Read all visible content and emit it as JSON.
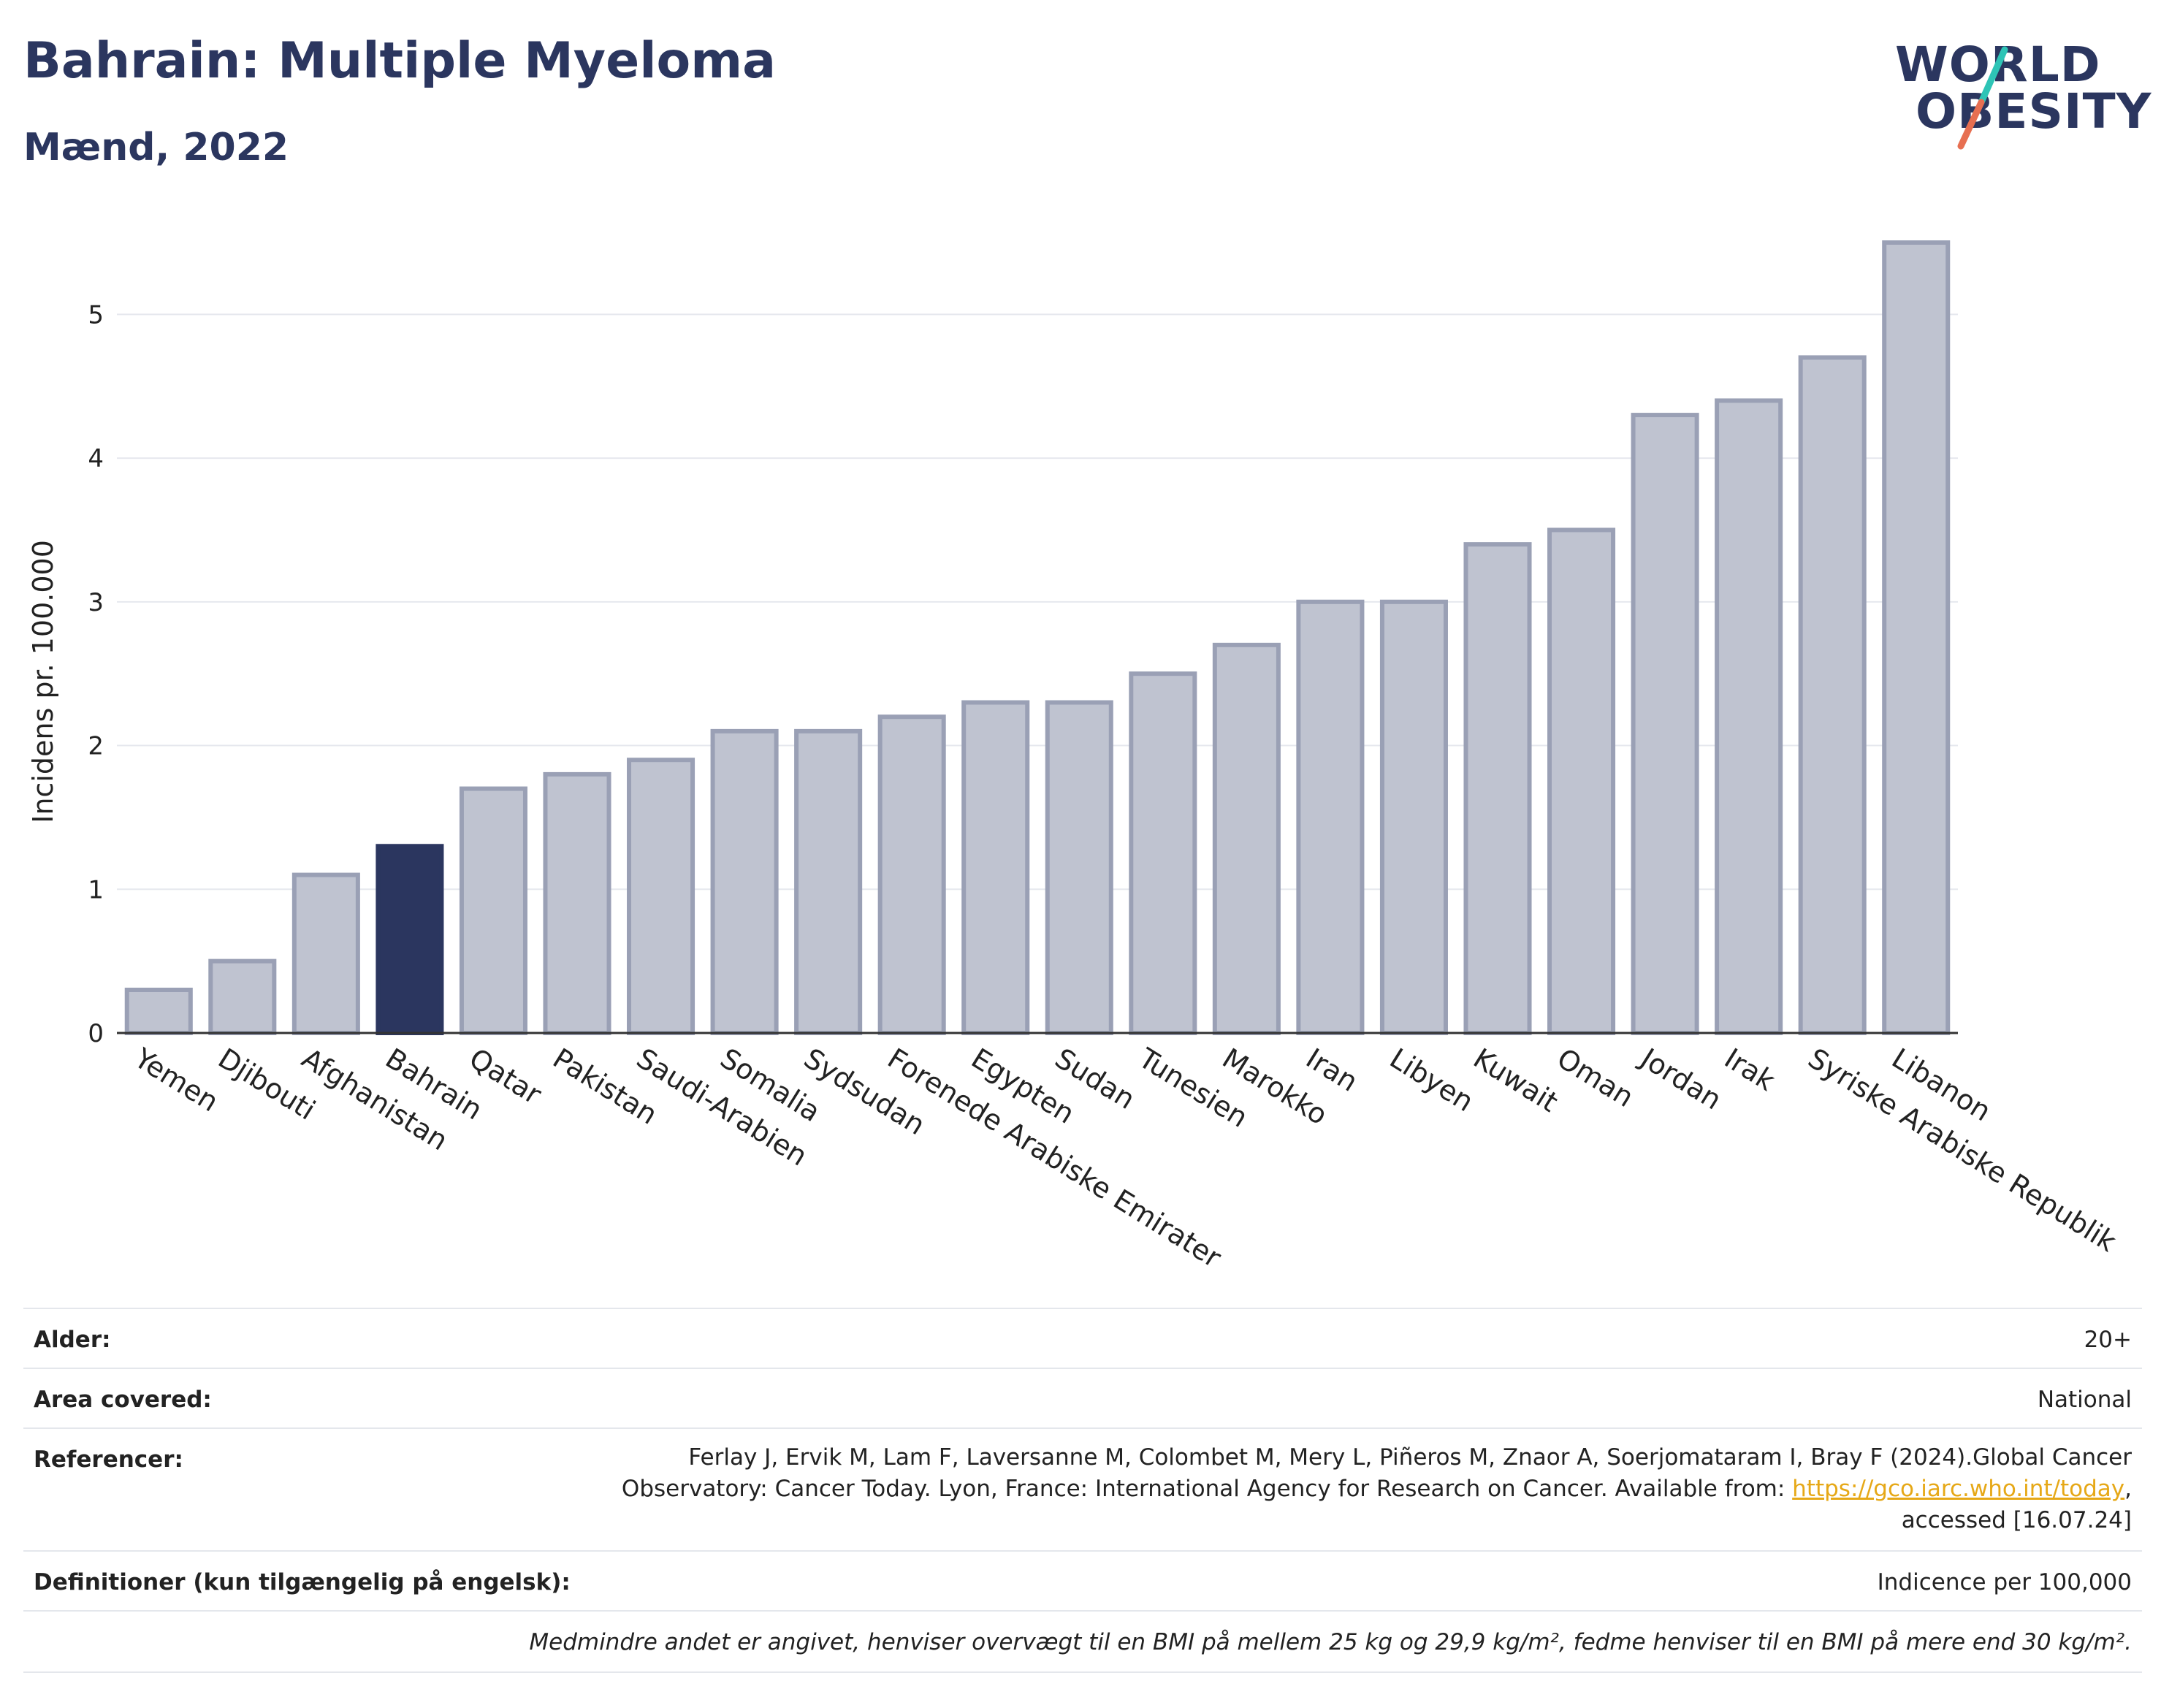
{
  "header": {
    "title": "Bahrain: Multiple Myeloma",
    "subtitle": "Mænd, 2022",
    "logo_line1": "WORLD",
    "logo_line2": "OBESITY"
  },
  "colors": {
    "accent": "#2b365f",
    "bar_default": "#bfc3d0",
    "bar_outline": "#9aa0b5",
    "logo_stripe_top": "#2ec4b6",
    "logo_stripe_bottom": "#e76f51",
    "link": "#e6a817"
  },
  "chart_data": {
    "type": "bar",
    "title": "Bahrain: Multiple Myeloma",
    "subtitle": "Mænd, 2022",
    "xlabel": "",
    "ylabel": "Incidens pr. 100.000",
    "ylim": [
      0,
      5.5
    ],
    "yticks": [
      0,
      1,
      2,
      3,
      4,
      5
    ],
    "grid": true,
    "highlight": "Bahrain",
    "categories": [
      "Yemen",
      "Djibouti",
      "Afghanistan",
      "Bahrain",
      "Qatar",
      "Pakistan",
      "Saudi-Arabien",
      "Somalia",
      "Sydsudan",
      "Forenede Arabiske Emirater",
      "Egypten",
      "Sudan",
      "Tunesien",
      "Marokko",
      "Iran",
      "Libyen",
      "Kuwait",
      "Oman",
      "Jordan",
      "Irak",
      "Syriske Arabiske Republik",
      "Libanon"
    ],
    "values": [
      0.3,
      0.5,
      1.1,
      1.3,
      1.7,
      1.8,
      1.9,
      2.1,
      2.1,
      2.2,
      2.3,
      2.3,
      2.5,
      2.7,
      3.0,
      3.0,
      3.4,
      3.5,
      4.3,
      4.4,
      4.7,
      5.5
    ]
  },
  "meta": {
    "age_label": "Alder:",
    "age_value": "20+",
    "area_label": "Area covered:",
    "area_value": "National",
    "ref_label": "Referencer:",
    "ref_line1": "Ferlay J, Ervik M, Lam F, Laversanne M, Colombet M, Mery L, Piñeros M, Znaor A, Soerjomataram I, Bray F (2024).Global Cancer",
    "ref_line2_pre": "Observatory: Cancer Today. Lyon, France: International Agency for Research on Cancer. Available from: ",
    "ref_link": "https://gco.iarc.who.int/today",
    "ref_line2_post": ",",
    "ref_line3": "accessed [16.07.24]",
    "def_label": "Definitioner (kun tilgængelig på engelsk):",
    "def_value": "Indicence per 100,000",
    "note": "Medmindre andet er angivet, henviser overvægt til en BMI på mellem 25 kg og 29,9 kg/m², fedme henviser til en BMI på mere end 30 kg/m²."
  }
}
